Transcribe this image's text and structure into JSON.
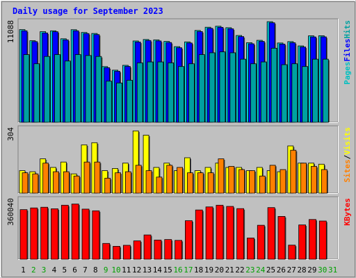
{
  "chart_data": {
    "type": "bar",
    "title": "Daily usage for September 2023",
    "x": [
      "1",
      "2",
      "3",
      "4",
      "5",
      "6",
      "7",
      "8",
      "9",
      "10",
      "11",
      "12",
      "13",
      "14",
      "15",
      "16",
      "17",
      "18",
      "19",
      "20",
      "21",
      "22",
      "23",
      "24",
      "25",
      "26",
      "27",
      "28",
      "29",
      "30",
      "31"
    ],
    "weekend_days": [
      2,
      3,
      9,
      10,
      16,
      17,
      23,
      24,
      30,
      31
    ],
    "panels": [
      {
        "id": "hits",
        "ymax_label": "11088",
        "ymax": 11088,
        "right_label": [
          "Pages",
          "Files",
          "Hits"
        ],
        "right_label_colors": [
          "#00c0c0",
          "#0000ff",
          "#00a0a0"
        ],
        "series": [
          {
            "name": "Hits",
            "color": "#00c8d4",
            "values": [
              10130,
              8920,
              9910,
              10000,
              9130,
              10120,
              9820,
              9710,
              6090,
              5700,
              6230,
              8890,
              9050,
              9010,
              8840,
              8270,
              8790,
              10040,
              10390,
              10500,
              10340,
              9490,
              8700,
              8960,
              11000,
              8670,
              8820,
              8350,
              9450,
              9460,
              null
            ]
          },
          {
            "name": "Files",
            "color": "#0000ff",
            "values": [
              10000,
              8820,
              9760,
              9900,
              9010,
              10000,
              9700,
              9590,
              5970,
              5580,
              6110,
              8770,
              8940,
              8890,
              8720,
              8150,
              8670,
              9920,
              10270,
              10380,
              10220,
              9370,
              8580,
              8840,
              10880,
              8550,
              8700,
              8230,
              9330,
              9340,
              null
            ]
          },
          {
            "name": "Pages",
            "color": "#00a0a0",
            "values": [
              7400,
              6400,
              7200,
              7400,
              6700,
              7400,
              7300,
              7200,
              4500,
              4300,
              4600,
              6500,
              6600,
              6600,
              6500,
              6100,
              6400,
              7400,
              7600,
              7700,
              7600,
              6900,
              6400,
              6600,
              8100,
              6300,
              6400,
              6100,
              6900,
              6900,
              null
            ]
          }
        ]
      },
      {
        "id": "visits",
        "ymax_label": "304",
        "ymax": 304,
        "right_label": [
          "Sites",
          "/",
          "Visits"
        ],
        "right_label_colors": [
          "#ff8000",
          "#000000",
          "#ffff00"
        ],
        "series": [
          {
            "name": "Visits",
            "color": "#ffff00",
            "values": [
              105,
              100,
              160,
              120,
              145,
              90,
              225,
              235,
              105,
              115,
              140,
              290,
              270,
              120,
              140,
              105,
              165,
              105,
              120,
              140,
              120,
              120,
              105,
              120,
              105,
              100,
              220,
              140,
              140,
              135,
              null
            ]
          },
          {
            "name": "Sites",
            "color": "#ff8000",
            "values": [
              95,
              90,
              140,
              100,
              100,
              80,
              145,
              145,
              70,
              95,
              100,
              130,
              105,
              75,
              130,
              120,
              95,
              95,
              95,
              160,
              125,
              110,
              105,
              80,
              130,
              110,
              200,
              140,
              125,
              110,
              null
            ]
          }
        ]
      },
      {
        "id": "kbytes",
        "ymax_label": "360040",
        "ymax": 360040,
        "right_label": [
          "KBytes"
        ],
        "right_label_colors": [
          "#ff0000"
        ],
        "series": [
          {
            "name": "KBytes",
            "color": "#ff0000",
            "values": [
              292000,
              302000,
              306000,
              297000,
              318000,
              325000,
              295000,
              285000,
              93000,
              76000,
              82000,
              108000,
              143000,
              113000,
              116000,
              111000,
              227000,
              290000,
              308000,
              318000,
              311000,
              298000,
              125000,
              200000,
              304000,
              252000,
              83000,
              202000,
              234000,
              225000,
              null
            ]
          }
        ]
      }
    ]
  },
  "colors": {
    "frame_bg": "#c0c0c0",
    "panel_bg": "#c0c0c0",
    "title": "#0000ff",
    "axis_text": "#000000",
    "weekday_label": "#000000",
    "weekend_label": "#00a000",
    "bar_outline": "#000000"
  }
}
